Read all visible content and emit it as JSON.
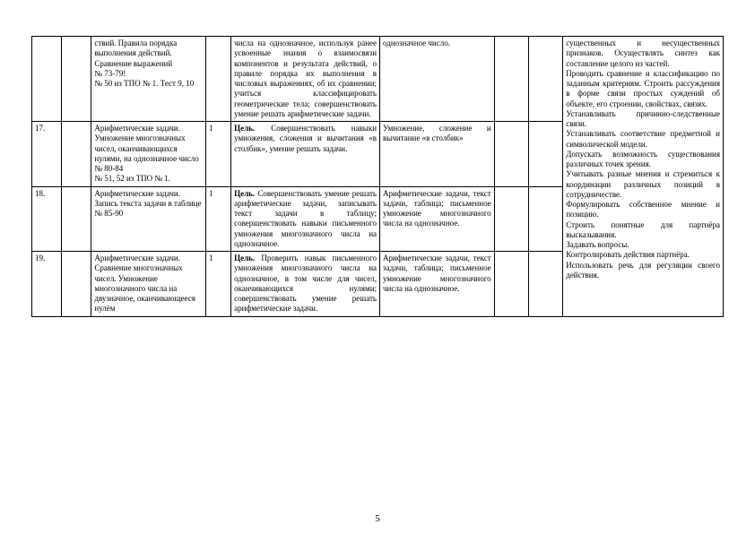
{
  "pageNumber": "5",
  "rows": [
    {
      "c1": "",
      "c2": "",
      "c3": "ствий. Правила порядка выполнения действий. Сравнение выражений\n№ 73-79!\n№ 50 из ТПО № 1. Тест 9, 10",
      "c4": "",
      "c5": "числа на однозначное, используя ранее усвоенные знания о взаимосвязи компонентов и результата действий, о правиле порядка их выполнения в числовых выражениях, об их сравнении; учиться классифицировать геометрические тела; совершенствовать умение решать арифметические задачи.",
      "c6": "однозначное число.",
      "c7": "",
      "c8": "",
      "c9_rowspan": 4,
      "c9": "существенных и несущественных признаков. Осуществлять синтез как составление целого из частей.\nПроводить сравнение и классификацию по заданным критериям. Строить рассуждения в форме связи простых суждений об объекте, его строении, свойствах, связях.\nУстанавливать причинно-следственные связи.\nУстанавливать соответствие предметной и символической модели.\nДопускать возможность существования различных точек зрения.\nУчитывать разные мнения и стремиться к координации различных позиций в сотрудничестве.\nФормулировать собственное мнение и позицию.\nСтроить понятные для партнёра высказывания.\nЗадавать вопросы.\nКонтролировать действия партнёра.\nИспользовать речь для регуляции своего действия."
    },
    {
      "c1": "17.",
      "c2": "",
      "c3": "Арифметические задачи. Умножение многозначных чисел, оканчивающихся нулями, на однозначное число\n№ 80-84\n№ 51, 52 из ТПО № 1.",
      "c4": "1",
      "c5": "Цель. Совершенствовать навыки умножения, сложения и вычитания «в столбик», умение решать задачи.",
      "c6": "Умножение, сложение и вычитание «в столбик»",
      "c7": "",
      "c8": ""
    },
    {
      "c1": "18.",
      "c2": "",
      "c3": "Арифметические задачи. Запись текста задачи в таблице\n№ 85-90",
      "c4": "1",
      "c5": "Цель. Совершенствовать умение решать арифметические задачи, записывать текст задачи в таблицу; совершенствовать навыки письменного умножения многозначного числа на однозначное.",
      "c6": "Арифметические задачи, текст задачи, таблица; письменное умножение многозначного числа на однозначное.",
      "c7": "",
      "c8": ""
    },
    {
      "c1": "19.",
      "c2": "",
      "c3": "Арифметические задачи. Сравнение многозначных чисел. Умножение многозначного числа на двузначное, оканчивающееся нулём",
      "c4": "1",
      "c5": "Цель. Проверить навык письменного умножения многозначного числа на однозначное, в том числе для чисел, оканчивающихся нулями; совершенствовать умение решать арифметические задачи.",
      "c6": "Арифметические задачи, текст задачи, таблица; письменное умножение многозначного числа на однозначное.",
      "c7": "",
      "c8": ""
    }
  ]
}
